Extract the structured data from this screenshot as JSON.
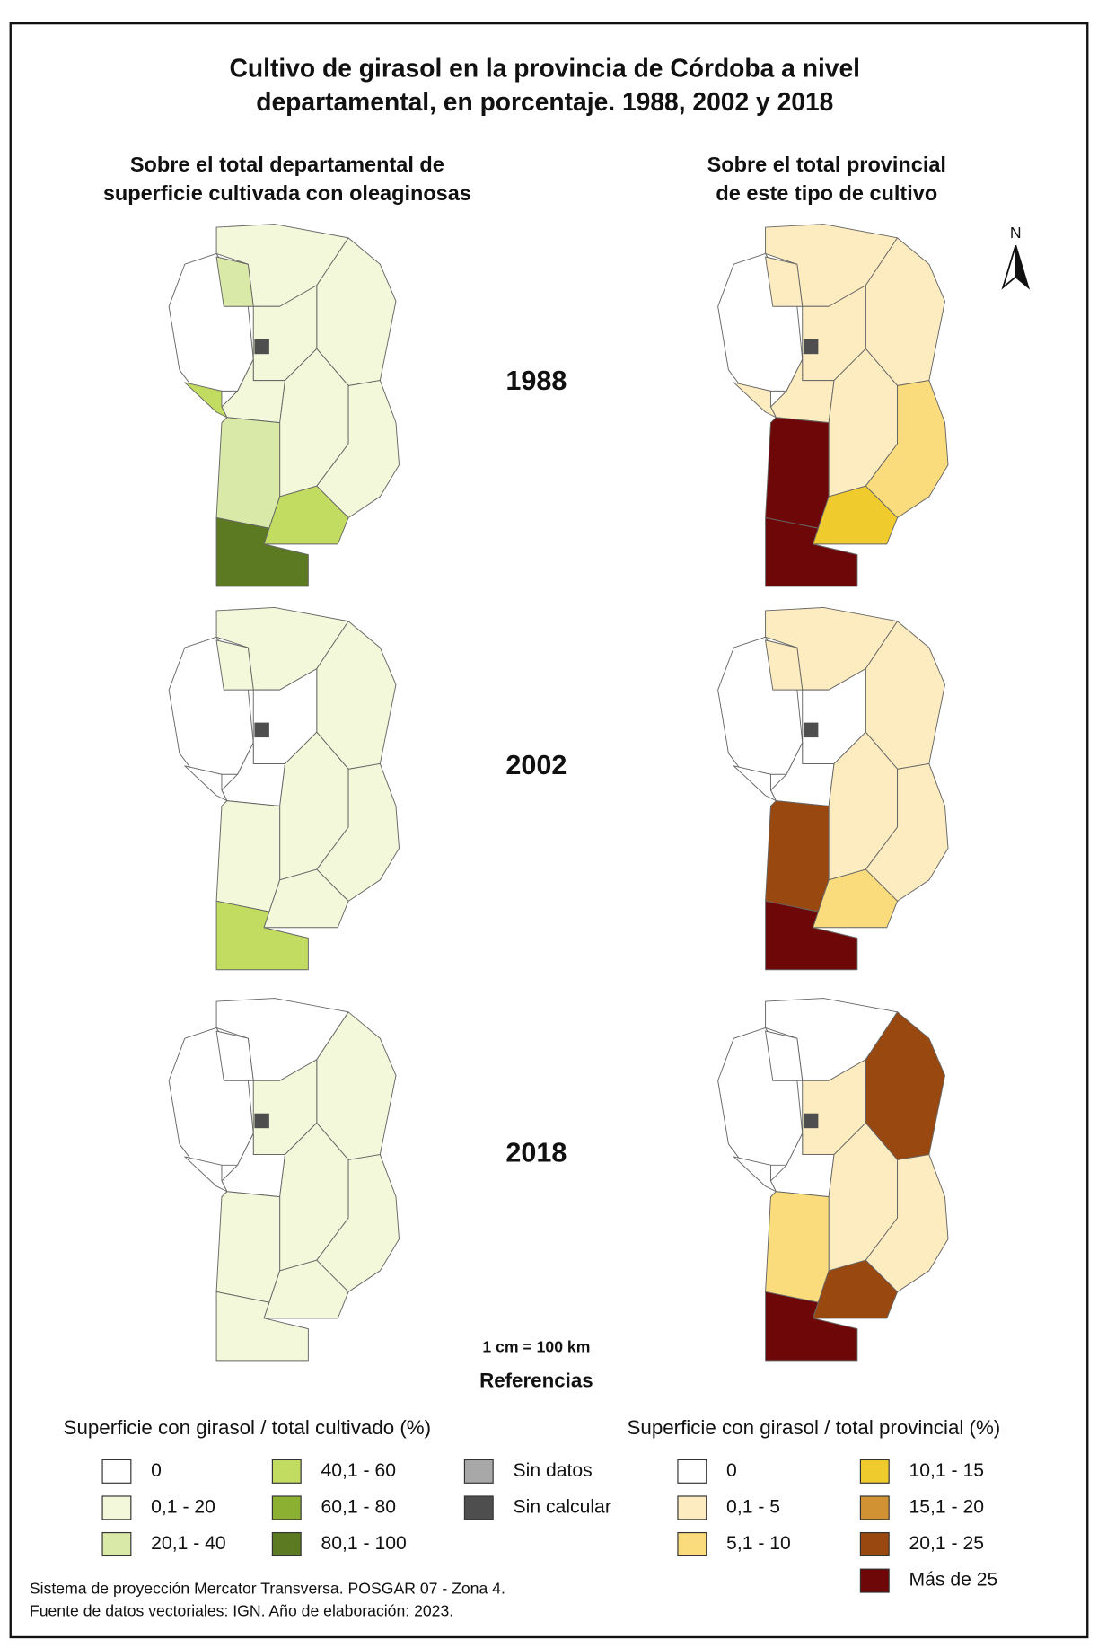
{
  "title": [
    "Cultivo de girasol en la provincia de Córdoba a nivel",
    "departamental, en porcentaje. 1988, 2002 y 2018"
  ],
  "panels": [
    [
      "Sobre el total departamental de",
      "superficie cultivada con oleaginosas"
    ],
    [
      "Sobre el total provincial",
      "de este tipo de cultivo"
    ]
  ],
  "years": [
    "1988",
    "2002",
    "2018"
  ],
  "north": "N",
  "scale": "1 cm = 100 km",
  "references": "Referencias",
  "legends": [
    {
      "title": "Superficie con girasol / total cultivado (%)",
      "columns": [
        [
          {
            "label": "0",
            "color": "#ffffff"
          },
          {
            "label": "0,1 - 20",
            "color": "#f2f8d9"
          },
          {
            "label": "20,1 - 40",
            "color": "#d9e9a8"
          }
        ],
        [
          {
            "label": "40,1 - 60",
            "color": "#c2dc62"
          },
          {
            "label": "60,1 - 80",
            "color": "#8cb032"
          },
          {
            "label": "80,1 - 100",
            "color": "#5b7a22"
          }
        ],
        [
          {
            "label": "Sin datos",
            "color": "#a8a8a8"
          },
          {
            "label": "Sin calcular",
            "color": "#4e4e4e"
          }
        ]
      ]
    },
    {
      "title": "Superficie con girasol / total provincial (%)",
      "columns": [
        [
          {
            "label": "0",
            "color": "#ffffff"
          },
          {
            "label": "0,1 - 5",
            "color": "#fdecbf"
          },
          {
            "label": "5,1 - 10",
            "color": "#fbdc7c"
          }
        ],
        [
          {
            "label": "10,1 - 15",
            "color": "#f0cb2e"
          },
          {
            "label": "15,1 - 20",
            "color": "#d09232"
          },
          {
            "label": "20,1 - 25",
            "color": "#994810"
          },
          {
            "label": "Más de 25",
            "color": "#6e0808"
          }
        ]
      ]
    }
  ],
  "footer": [
    "Sistema de proyección Mercator Transversa. POSGAR 07 - Zona 4.",
    "Fuente de datos vectoriales: IGN. Año de elaboración: 2023."
  ]
}
